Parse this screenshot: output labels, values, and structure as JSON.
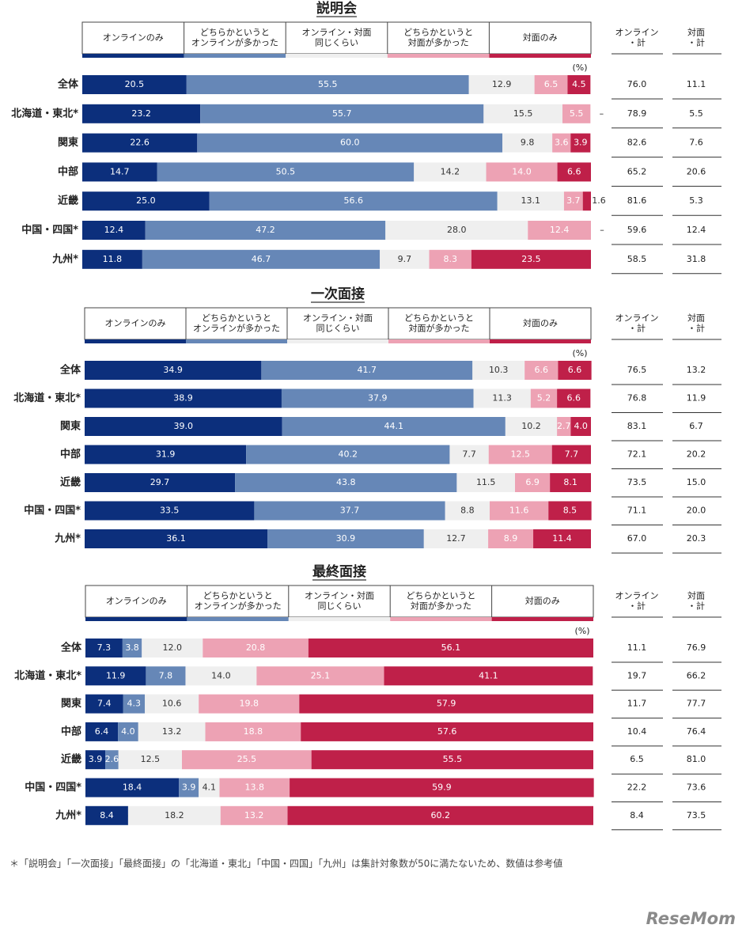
{
  "chart_data": [
    {
      "type": "stacked-bar-h",
      "title": "説明会",
      "unit": "(%)",
      "xlim": [
        0,
        100
      ],
      "categories": [
        "全体",
        "北海道・東北*",
        "関東",
        "中部",
        "近畿",
        "中国・四国*",
        "九州*"
      ],
      "series": [
        {
          "name": "オンラインのみ",
          "color": "#0c2f7c",
          "values": [
            20.5,
            23.2,
            22.6,
            14.7,
            25.0,
            12.4,
            11.8
          ],
          "value_labels": [
            "20.5",
            "23.2",
            "22.6",
            "14.7",
            "25.0",
            "12.4",
            "11.8"
          ]
        },
        {
          "name": "どちらかというと\nオンラインが多かった",
          "color": "#6687b7",
          "values": [
            55.5,
            55.7,
            60.0,
            50.5,
            56.6,
            47.2,
            46.7
          ],
          "value_labels": [
            "55.5",
            "55.7",
            "60.0",
            "50.5",
            "56.6",
            "47.2",
            "46.7"
          ]
        },
        {
          "name": "オンライン・対面\n同じくらい",
          "color": "#efefef",
          "values": [
            12.9,
            15.5,
            9.8,
            14.2,
            13.1,
            28.0,
            9.7
          ],
          "value_labels": [
            "12.9",
            "15.5",
            "9.8",
            "14.2",
            "13.1",
            "28.0",
            "9.7"
          ]
        },
        {
          "name": "どちらかというと\n対面が多かった",
          "color": "#eda2b4",
          "values": [
            6.5,
            5.5,
            3.6,
            14.0,
            3.7,
            12.4,
            8.3
          ],
          "value_labels": [
            "6.5",
            "5.5",
            "3.6",
            "14.0",
            "3.7",
            "12.4",
            "8.3"
          ]
        },
        {
          "name": "対面のみ",
          "color": "#bf2049",
          "values": [
            4.5,
            null,
            3.9,
            6.6,
            1.6,
            null,
            23.5
          ],
          "value_labels": [
            "4.5",
            "–",
            "3.9",
            "6.6",
            "1.6",
            "–",
            "23.5"
          ]
        }
      ],
      "columns": [
        {
          "name": "オンライン\n・計",
          "values": [
            76.0,
            78.9,
            82.6,
            65.2,
            81.6,
            59.6,
            58.5
          ],
          "value_labels": [
            "76.0",
            "78.9",
            "82.6",
            "65.2",
            "81.6",
            "59.6",
            "58.5"
          ]
        },
        {
          "name": "対面\n・計",
          "values": [
            11.1,
            5.5,
            7.6,
            20.6,
            5.3,
            12.4,
            31.8
          ],
          "value_labels": [
            "11.1",
            "5.5",
            "7.6",
            "20.6",
            "5.3",
            "12.4",
            "31.8"
          ]
        }
      ]
    },
    {
      "type": "stacked-bar-h",
      "title": "一次面接",
      "unit": "(%)",
      "xlim": [
        0,
        100
      ],
      "categories": [
        "全体",
        "北海道・東北*",
        "関東",
        "中部",
        "近畿",
        "中国・四国*",
        "九州*"
      ],
      "series": [
        {
          "name": "オンラインのみ",
          "color": "#0c2f7c",
          "values": [
            34.9,
            38.9,
            39.0,
            31.9,
            29.7,
            33.5,
            36.1
          ],
          "value_labels": [
            "34.9",
            "38.9",
            "39.0",
            "31.9",
            "29.7",
            "33.5",
            "36.1"
          ]
        },
        {
          "name": "どちらかというと\nオンラインが多かった",
          "color": "#6687b7",
          "values": [
            41.7,
            37.9,
            44.1,
            40.2,
            43.8,
            37.7,
            30.9
          ],
          "value_labels": [
            "41.7",
            "37.9",
            "44.1",
            "40.2",
            "43.8",
            "37.7",
            "30.9"
          ]
        },
        {
          "name": "オンライン・対面\n同じくらい",
          "color": "#efefef",
          "values": [
            10.3,
            11.3,
            10.2,
            7.7,
            11.5,
            8.8,
            12.7
          ],
          "value_labels": [
            "10.3",
            "11.3",
            "10.2",
            "7.7",
            "11.5",
            "8.8",
            "12.7"
          ]
        },
        {
          "name": "どちらかというと\n対面が多かった",
          "color": "#eda2b4",
          "values": [
            6.6,
            5.2,
            2.7,
            12.5,
            6.9,
            11.6,
            8.9
          ],
          "value_labels": [
            "6.6",
            "5.2",
            "2.7",
            "12.5",
            "6.9",
            "11.6",
            "8.9"
          ]
        },
        {
          "name": "対面のみ",
          "color": "#bf2049",
          "values": [
            6.6,
            6.6,
            4.0,
            7.7,
            8.1,
            8.5,
            11.4
          ],
          "value_labels": [
            "6.6",
            "6.6",
            "4.0",
            "7.7",
            "8.1",
            "8.5",
            "11.4"
          ]
        }
      ],
      "columns": [
        {
          "name": "オンライン\n・計",
          "values": [
            76.5,
            76.8,
            83.1,
            72.1,
            73.5,
            71.1,
            67.0
          ],
          "value_labels": [
            "76.5",
            "76.8",
            "83.1",
            "72.1",
            "73.5",
            "71.1",
            "67.0"
          ]
        },
        {
          "name": "対面\n・計",
          "values": [
            13.2,
            11.9,
            6.7,
            20.2,
            15.0,
            20.0,
            20.3
          ],
          "value_labels": [
            "13.2",
            "11.9",
            "6.7",
            "20.2",
            "15.0",
            "20.0",
            "20.3"
          ]
        }
      ]
    },
    {
      "type": "stacked-bar-h",
      "title": "最終面接",
      "unit": "(%)",
      "xlim": [
        0,
        100
      ],
      "categories": [
        "全体",
        "北海道・東北*",
        "関東",
        "中部",
        "近畿",
        "中国・四国*",
        "九州*"
      ],
      "series": [
        {
          "name": "オンラインのみ",
          "color": "#0c2f7c",
          "values": [
            7.3,
            11.9,
            7.4,
            6.4,
            3.9,
            18.4,
            8.4
          ],
          "value_labels": [
            "7.3",
            "11.9",
            "7.4",
            "6.4",
            "3.9",
            "18.4",
            "8.4"
          ]
        },
        {
          "name": "どちらかというと\nオンラインが多かった",
          "color": "#6687b7",
          "values": [
            3.8,
            7.8,
            4.3,
            4.0,
            2.6,
            3.9,
            null
          ],
          "value_labels": [
            "3.8",
            "7.8",
            "4.3",
            "4.0",
            "2.6",
            "3.9",
            "–"
          ]
        },
        {
          "name": "オンライン・対面\n同じくらい",
          "color": "#efefef",
          "values": [
            12.0,
            14.0,
            10.6,
            13.2,
            12.5,
            4.1,
            18.2
          ],
          "value_labels": [
            "12.0",
            "14.0",
            "10.6",
            "13.2",
            "12.5",
            "4.1",
            "18.2"
          ]
        },
        {
          "name": "どちらかというと\n対面が多かった",
          "color": "#eda2b4",
          "values": [
            20.8,
            25.1,
            19.8,
            18.8,
            25.5,
            13.8,
            13.2
          ],
          "value_labels": [
            "20.8",
            "25.1",
            "19.8",
            "18.8",
            "25.5",
            "13.8",
            "13.2"
          ]
        },
        {
          "name": "対面のみ",
          "color": "#bf2049",
          "values": [
            56.1,
            41.1,
            57.9,
            57.6,
            55.5,
            59.9,
            60.2
          ],
          "value_labels": [
            "56.1",
            "41.1",
            "57.9",
            "57.6",
            "55.5",
            "59.9",
            "60.2"
          ]
        }
      ],
      "columns": [
        {
          "name": "オンライン\n・計",
          "values": [
            11.1,
            19.7,
            11.7,
            10.4,
            6.5,
            22.2,
            8.4
          ],
          "value_labels": [
            "11.1",
            "19.7",
            "11.7",
            "10.4",
            "6.5",
            "22.2",
            "8.4"
          ]
        },
        {
          "name": "対面\n・計",
          "values": [
            76.9,
            66.2,
            77.7,
            76.4,
            81.0,
            73.6,
            73.5
          ],
          "value_labels": [
            "76.9",
            "66.2",
            "77.7",
            "76.4",
            "81.0",
            "73.6",
            "73.5"
          ]
        }
      ]
    }
  ],
  "footnote": "＊「説明会」「一次面接」「最終面接」の「北海道・東北」「中国・四国」「九州」は集計対象数が50に満たないため、数値は参考値",
  "logo": "ReseMom"
}
